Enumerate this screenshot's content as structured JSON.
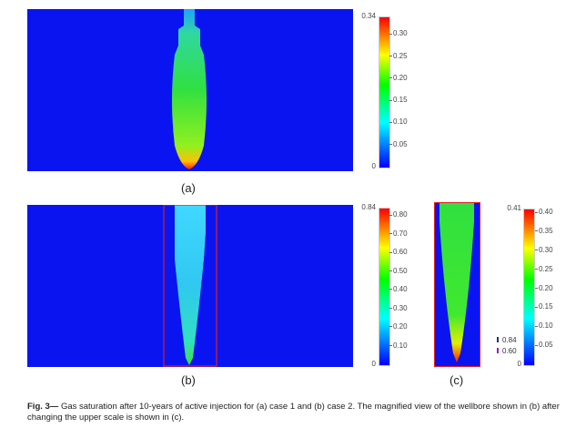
{
  "figure": {
    "caption_label": "Fig. 3—",
    "caption_text": " Gas saturation after 10-years of active injection for (a) case 1 and (b) case 2. The magnified view of the wellbore shown in (b) after changing the upper scale is shown in (c).",
    "panels": [
      {
        "label": "(a)",
        "colorbar": {
          "max": "0.34",
          "min": "0",
          "ticks": [
            "0.30",
            "0.25",
            "0.20",
            "0.15",
            "0.10",
            "0.05"
          ],
          "tick_values": [
            0.3,
            0.25,
            0.2,
            0.15,
            0.1,
            0.05
          ],
          "range": [
            0,
            0.34
          ]
        }
      },
      {
        "label": "(b)",
        "colorbar": {
          "max": "0.84",
          "min": "0",
          "ticks": [
            "0.80",
            "0.70",
            "0.60",
            "0.50",
            "0.40",
            "0.30",
            "0.20",
            "0.10"
          ],
          "tick_values": [
            0.8,
            0.7,
            0.6,
            0.5,
            0.4,
            0.3,
            0.2,
            0.1
          ],
          "range": [
            0,
            0.84
          ]
        }
      },
      {
        "label": "(c)",
        "colorbar": {
          "max": "0.41",
          "min": "0",
          "ticks": [
            "0.40",
            "0.35",
            "0.30",
            "0.25",
            "0.20",
            "0.15",
            "0.10",
            "0.05"
          ],
          "tick_values": [
            0.4,
            0.35,
            0.3,
            0.25,
            0.2,
            0.15,
            0.1,
            0.05
          ],
          "range": [
            0,
            0.41
          ]
        },
        "legend": [
          "0.84",
          "0.60"
        ]
      }
    ],
    "colors": {
      "background_field": "#0a14f0",
      "highlight_box": "#e0201a"
    }
  }
}
